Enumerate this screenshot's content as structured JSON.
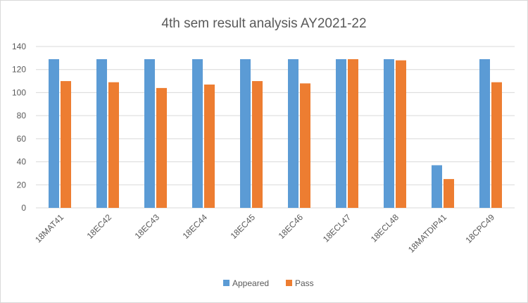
{
  "chart_data": {
    "type": "bar",
    "title": "4th sem result analysis AY2021-22",
    "xlabel": "",
    "ylabel": "",
    "categories": [
      "18MAT41",
      "18EC42",
      "18EC43",
      "18EC44",
      "18EC45",
      "18EC46",
      "18ECL47",
      "18ECL48",
      "18MATDIP41",
      "18CPC49"
    ],
    "series": [
      {
        "name": "Appeared",
        "color": "#5b9bd5",
        "values": [
          129,
          129,
          129,
          129,
          129,
          129,
          129,
          129,
          37,
          129
        ]
      },
      {
        "name": "Pass",
        "color": "#ed7d31",
        "values": [
          110,
          109,
          104,
          107,
          110,
          108,
          129,
          128,
          25,
          109
        ]
      }
    ],
    "ylim": [
      0,
      140
    ],
    "yticks": [
      0,
      20,
      40,
      60,
      80,
      100,
      120,
      140
    ],
    "grid": true,
    "legend_position": "bottom"
  }
}
